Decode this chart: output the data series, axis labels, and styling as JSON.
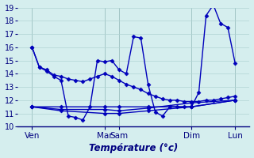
{
  "xlabel": "Température (°c)",
  "bg_color": "#d5eeee",
  "line_color": "#0000bb",
  "grid_color": "#b0d4d4",
  "ylim": [
    10,
    19
  ],
  "yticks": [
    10,
    11,
    12,
    13,
    14,
    15,
    16,
    17,
    18,
    19
  ],
  "xlim": [
    0,
    288
  ],
  "xtick_pos": [
    18,
    108,
    126,
    216,
    270
  ],
  "xtick_labels": [
    "Ven",
    "Mar",
    "Sam",
    "Dim",
    "Lun"
  ],
  "vline_pos": [
    18,
    108,
    126,
    216,
    270
  ],
  "s1_x": [
    18,
    27,
    36,
    45,
    54,
    63,
    72,
    81,
    90,
    99,
    108,
    117,
    126,
    135,
    144,
    153,
    162,
    171,
    180,
    189,
    198,
    207,
    216,
    225,
    234,
    243,
    252,
    261,
    270
  ],
  "s1_y": [
    16.0,
    14.5,
    14.3,
    13.9,
    13.8,
    13.6,
    13.5,
    13.4,
    13.6,
    13.8,
    14.0,
    13.8,
    13.5,
    13.2,
    13.0,
    12.8,
    12.5,
    12.3,
    12.1,
    12.0,
    12.0,
    11.9,
    11.9,
    11.9,
    12.0,
    12.0,
    12.1,
    12.2,
    12.3
  ],
  "s2_x": [
    18,
    27,
    36,
    45,
    54,
    63,
    72,
    81,
    90,
    99,
    108,
    117,
    126,
    135,
    144,
    153,
    162,
    171,
    180,
    189,
    198,
    207,
    216,
    225,
    234,
    243,
    252,
    261,
    270
  ],
  "s2_y": [
    16.0,
    14.5,
    14.2,
    13.8,
    13.5,
    10.8,
    10.7,
    10.5,
    11.5,
    15.0,
    14.9,
    15.0,
    14.3,
    14.0,
    16.8,
    16.7,
    13.2,
    11.1,
    10.8,
    11.5,
    11.5,
    11.5,
    11.5,
    12.6,
    18.4,
    19.2,
    17.8,
    17.5,
    14.8
  ],
  "s3_x": [
    18,
    54,
    108,
    126,
    162,
    216,
    270
  ],
  "s3_y": [
    11.5,
    11.5,
    11.5,
    11.5,
    11.5,
    11.5,
    12.0
  ],
  "s4_x": [
    18,
    54,
    108,
    126,
    162,
    216,
    270
  ],
  "s4_y": [
    11.5,
    11.3,
    11.3,
    11.2,
    11.4,
    11.8,
    12.0
  ],
  "s5_x": [
    18,
    54,
    108,
    126,
    162,
    216,
    270
  ],
  "s5_y": [
    11.5,
    11.2,
    11.0,
    11.0,
    11.2,
    11.5,
    12.0
  ]
}
